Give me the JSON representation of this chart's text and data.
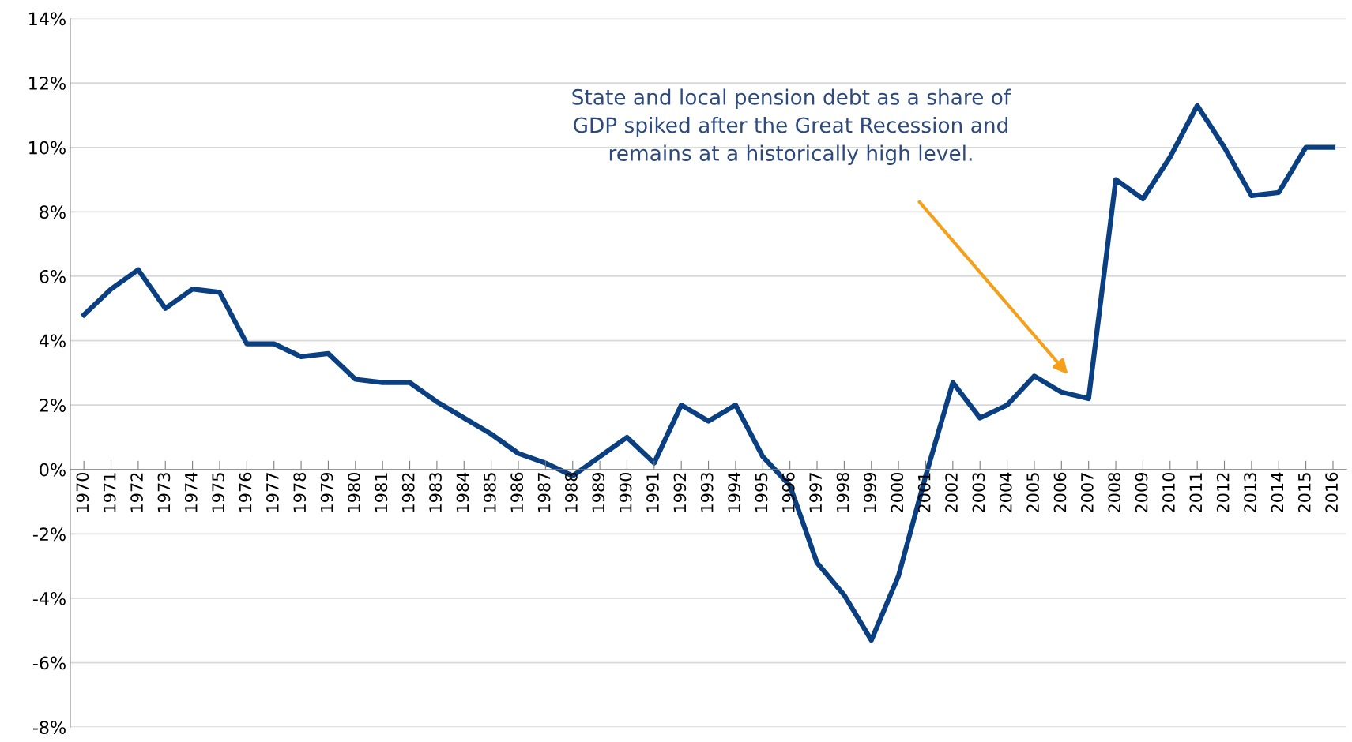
{
  "chart_data": {
    "type": "line",
    "categories": [
      "1970",
      "1971",
      "1972",
      "1973",
      "1974",
      "1975",
      "1976",
      "1977",
      "1978",
      "1979",
      "1980",
      "1981",
      "1982",
      "1983",
      "1984",
      "1985",
      "1986",
      "1987",
      "1988",
      "1989",
      "1990",
      "1991",
      "1992",
      "1993",
      "1994",
      "1995",
      "1996",
      "1997",
      "1998",
      "1999",
      "2000",
      "2001",
      "2002",
      "2003",
      "2004",
      "2005",
      "2006",
      "2007",
      "2008",
      "2009",
      "2010",
      "2011",
      "2012",
      "2013",
      "2014",
      "2015",
      "2016"
    ],
    "series": [
      {
        "color": "#0a3f82",
        "values": [
          4.8,
          5.6,
          6.2,
          5.0,
          5.6,
          5.5,
          3.9,
          3.9,
          3.5,
          3.6,
          2.8,
          2.7,
          2.7,
          2.1,
          1.6,
          1.1,
          0.5,
          0.2,
          -0.2,
          0.4,
          1.0,
          0.2,
          2.0,
          1.5,
          2.0,
          0.4,
          -0.5,
          -2.9,
          -3.9,
          -5.3,
          -3.3,
          -0.2,
          2.7,
          1.6,
          2.0,
          2.9,
          2.4,
          2.2,
          9.0,
          8.4,
          9.7,
          11.3,
          10.0,
          8.5,
          8.6,
          10.0,
          10.0
        ]
      }
    ],
    "ylim": [
      -8,
      14
    ],
    "yticks": [
      {
        "value": -8,
        "label": "-8%"
      },
      {
        "value": -6,
        "label": "-6%"
      },
      {
        "value": -4,
        "label": "-4%"
      },
      {
        "value": -2,
        "label": "-2%"
      },
      {
        "value": 0,
        "label": "0%"
      },
      {
        "value": 2,
        "label": "2%"
      },
      {
        "value": 4,
        "label": "4%"
      },
      {
        "value": 6,
        "label": "6%"
      },
      {
        "value": 8,
        "label": "8%"
      },
      {
        "value": 10,
        "label": "10%"
      },
      {
        "value": 12,
        "label": "12%"
      },
      {
        "value": 14,
        "label": "14%"
      }
    ],
    "grid": "y",
    "marker": "none",
    "line_style": "solid",
    "annotations": [
      "State and local pension debt as a share of\nGDP spiked after the Great Recession and\nremains at a historically high level."
    ]
  }
}
